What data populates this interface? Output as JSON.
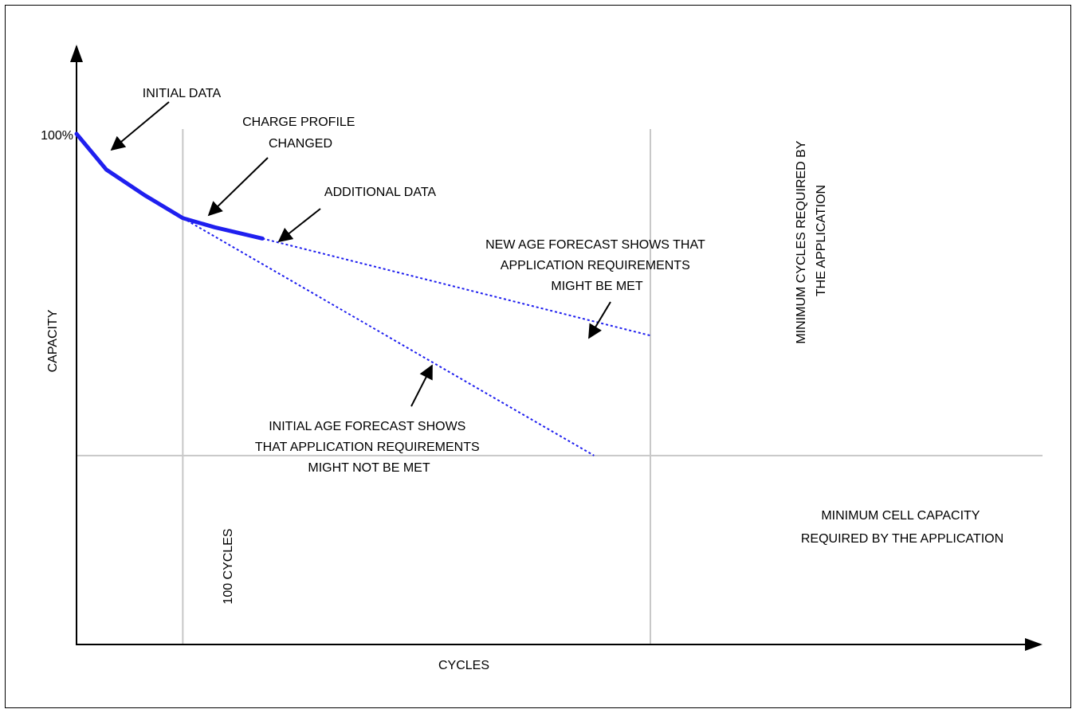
{
  "chart_data": {
    "type": "line",
    "title": "",
    "xlabel": "CYCLES",
    "ylabel": "CAPACITY",
    "y_tick_label": "100%",
    "grid": false,
    "series": [
      {
        "values_xy": [
          [
            0,
            100
          ],
          [
            28,
            93
          ],
          [
            64,
            88
          ],
          [
            100,
            83.5
          ],
          [
            130,
            81.7
          ],
          [
            175,
            79.5
          ]
        ],
        "style": "solid",
        "color": "#1f1fef"
      },
      {
        "values_xy": [
          [
            175,
            79.5
          ],
          [
            540,
            60.5
          ]
        ],
        "style": "dotted",
        "color": "#1f1fef"
      },
      {
        "values_xy": [
          [
            100,
            83.5
          ],
          [
            487,
            37
          ]
        ],
        "style": "dotted",
        "color": "#1f1fef"
      }
    ],
    "reference_lines": {
      "vertical_100": 100,
      "vertical_min": 540,
      "horizontal_min": 37
    },
    "axis_range": {
      "x": [
        0,
        750
      ],
      "y": [
        0,
        100
      ]
    }
  },
  "annotations": {
    "initial_data": "INITIAL DATA",
    "charge_profile": [
      "CHARGE PROFILE",
      "CHANGED"
    ],
    "additional_data": "ADDITIONAL DATA",
    "new_forecast": [
      "NEW AGE FORECAST SHOWS THAT",
      "APPLICATION REQUIREMENTS",
      "MIGHT BE MET"
    ],
    "initial_forecast": [
      "INITIAL AGE FORECAST SHOWS",
      "THAT APPLICATION REQUIREMENTS",
      "MIGHT NOT BE MET"
    ],
    "min_cycles": [
      "MINIMUM CYCLES REQUIRED BY",
      "THE APPLICATION"
    ],
    "min_capacity": [
      "MINIMUM CELL CAPACITY",
      "REQUIRED BY THE APPLICATION"
    ],
    "hundred_cycles": "100 CYCLES"
  },
  "colors": {
    "data_line": "#1f1fef",
    "reference_line": "#c8c8c8",
    "axis": "#000000"
  }
}
